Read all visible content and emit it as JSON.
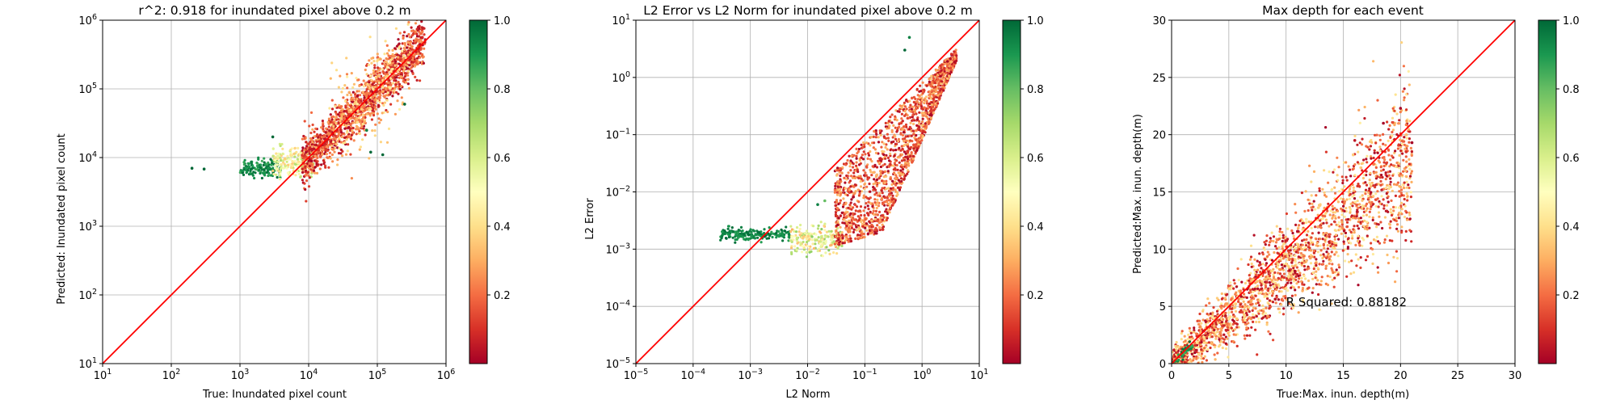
{
  "chart_data": [
    {
      "type": "scatter",
      "title": "r^2: 0.918 for inundated pixel above 0.2 m",
      "xlabel": "True: Inundated pixel count",
      "ylabel": "Predicted: Inundated pixel count",
      "xscale": "log",
      "yscale": "log",
      "xlim": [
        10,
        1000000
      ],
      "ylim": [
        10,
        1000000
      ],
      "x_ticks": [
        {
          "value": 10,
          "label": "10",
          "exp": "1"
        },
        {
          "value": 100,
          "label": "10",
          "exp": "2"
        },
        {
          "value": 1000,
          "label": "10",
          "exp": "3"
        },
        {
          "value": 10000,
          "label": "10",
          "exp": "4"
        },
        {
          "value": 100000,
          "label": "10",
          "exp": "5"
        },
        {
          "value": 1000000,
          "label": "10",
          "exp": "6"
        }
      ],
      "y_ticks": [
        {
          "value": 10,
          "label": "10",
          "exp": "1"
        },
        {
          "value": 100,
          "label": "10",
          "exp": "2"
        },
        {
          "value": 1000,
          "label": "10",
          "exp": "3"
        },
        {
          "value": 10000,
          "label": "10",
          "exp": "4"
        },
        {
          "value": 100000,
          "label": "10",
          "exp": "5"
        },
        {
          "value": 1000000,
          "label": "10",
          "exp": "6"
        }
      ],
      "grid": true,
      "reference_line": {
        "from": [
          10,
          10
        ],
        "to": [
          1000000,
          1000000
        ],
        "color": "#ff0000"
      },
      "colormap": "RdYlGn",
      "colorbar": {
        "range": [
          0,
          1
        ],
        "ticks": [
          "0.2",
          "0.4",
          "0.6",
          "0.8",
          "1.0"
        ]
      },
      "clusters": [
        {
          "x_range": [
            1000,
            4000
          ],
          "y_center": 7000,
          "spread": 0.06,
          "color_range": [
            0.85,
            1.0
          ],
          "count": 150
        },
        {
          "x_range": [
            3000,
            12000
          ],
          "y_center": 8500,
          "spread": 0.1,
          "color_range": [
            0.35,
            0.7
          ],
          "count": 200
        },
        {
          "x_range": [
            8000,
            500000
          ],
          "y_follow": 1.0,
          "spread": 0.18,
          "color_range": [
            0.0,
            0.3
          ],
          "count": 1400
        },
        {
          "x_range": [
            20000,
            300000
          ],
          "y_follow": 1.0,
          "spread": 0.35,
          "color_range": [
            0.2,
            0.45
          ],
          "count": 250
        }
      ],
      "outliers": [
        {
          "x": 200,
          "y": 7000,
          "c": 1.0
        },
        {
          "x": 300,
          "y": 6800,
          "c": 1.0
        },
        {
          "x": 3000,
          "y": 20000,
          "c": 1.0
        },
        {
          "x": 80000,
          "y": 12000,
          "c": 1.0
        },
        {
          "x": 120000,
          "y": 11000,
          "c": 1.0
        },
        {
          "x": 70000,
          "y": 25000,
          "c": 0.95
        },
        {
          "x": 250000,
          "y": 60000,
          "c": 1.0
        }
      ]
    },
    {
      "type": "scatter",
      "title": "L2 Error vs L2 Norm for inundated pixel above 0.2 m",
      "xlabel": "L2 Norm",
      "ylabel": "L2 Error",
      "xscale": "log",
      "yscale": "log",
      "xlim": [
        1e-05,
        10
      ],
      "ylim": [
        1e-05,
        10
      ],
      "x_ticks": [
        {
          "value": 1e-05,
          "label": "10",
          "exp": "−5"
        },
        {
          "value": 0.0001,
          "label": "10",
          "exp": "−4"
        },
        {
          "value": 0.001,
          "label": "10",
          "exp": "−3"
        },
        {
          "value": 0.01,
          "label": "10",
          "exp": "−2"
        },
        {
          "value": 0.1,
          "label": "10",
          "exp": "−1"
        },
        {
          "value": 1,
          "label": "10",
          "exp": "0"
        },
        {
          "value": 10,
          "label": "10",
          "exp": "1"
        }
      ],
      "y_ticks": [
        {
          "value": 1e-05,
          "label": "10",
          "exp": "−5"
        },
        {
          "value": 0.0001,
          "label": "10",
          "exp": "−4"
        },
        {
          "value": 0.001,
          "label": "10",
          "exp": "−3"
        },
        {
          "value": 0.01,
          "label": "10",
          "exp": "−2"
        },
        {
          "value": 0.1,
          "label": "10",
          "exp": "−1"
        },
        {
          "value": 1,
          "label": "10",
          "exp": "0"
        },
        {
          "value": 10,
          "label": "10",
          "exp": "1"
        }
      ],
      "grid": true,
      "reference_line": {
        "from": [
          1e-05,
          1e-05
        ],
        "to": [
          10,
          10
        ],
        "color": "#ff0000"
      },
      "colormap": "RdYlGn",
      "colorbar": {
        "range": [
          0,
          1
        ],
        "ticks": [
          "0.2",
          "0.4",
          "0.6",
          "0.8",
          "1.0"
        ]
      },
      "clusters": [
        {
          "x_range": [
            0.0003,
            0.005
          ],
          "y_center": 0.0018,
          "spread": 0.05,
          "color_range": [
            0.88,
            1.0
          ],
          "count": 180
        },
        {
          "x_range": [
            0.005,
            0.04
          ],
          "y_center": 0.0015,
          "spread": 0.12,
          "color_range": [
            0.3,
            0.75
          ],
          "count": 200
        },
        {
          "x_range": [
            0.03,
            4
          ],
          "y_lower_curve": true,
          "spread": 0.0,
          "color_range": [
            0.0,
            0.35
          ],
          "count": 1600
        }
      ],
      "outliers": [
        {
          "x": 0.5,
          "y": 3,
          "c": 1.0
        },
        {
          "x": 0.6,
          "y": 5,
          "c": 0.95
        },
        {
          "x": 0.02,
          "y": 0.007,
          "c": 0.8
        },
        {
          "x": 0.015,
          "y": 0.006,
          "c": 0.95
        }
      ]
    },
    {
      "type": "scatter",
      "title": "Max depth for each event",
      "xlabel": "True:Max. inun. depth(m)",
      "ylabel": "Predicted:Max. inun. depth(m)",
      "xscale": "linear",
      "yscale": "linear",
      "xlim": [
        0,
        30
      ],
      "ylim": [
        0,
        30
      ],
      "x_ticks": [
        {
          "value": 0,
          "label": "0"
        },
        {
          "value": 5,
          "label": "5"
        },
        {
          "value": 10,
          "label": "10"
        },
        {
          "value": 15,
          "label": "15"
        },
        {
          "value": 20,
          "label": "20"
        },
        {
          "value": 25,
          "label": "25"
        },
        {
          "value": 30,
          "label": "30"
        }
      ],
      "y_ticks": [
        {
          "value": 0,
          "label": "0"
        },
        {
          "value": 5,
          "label": "5"
        },
        {
          "value": 10,
          "label": "10"
        },
        {
          "value": 15,
          "label": "15"
        },
        {
          "value": 20,
          "label": "20"
        },
        {
          "value": 25,
          "label": "25"
        },
        {
          "value": 30,
          "label": "30"
        }
      ],
      "grid": true,
      "reference_line": {
        "from": [
          0,
          0
        ],
        "to": [
          30,
          30
        ],
        "color": "#ff0000"
      },
      "annotation": {
        "text": "R Squared: 0.88182",
        "x": 10,
        "y": 5
      },
      "colormap": "RdYlGn",
      "colorbar": {
        "range": [
          0,
          1
        ],
        "ticks": [
          "0.2",
          "0.4",
          "0.6",
          "0.8",
          "1.0"
        ]
      },
      "clusters": [
        {
          "x_range": [
            0,
            21
          ],
          "y_slope": 0.85,
          "spread": 1.6,
          "color_range": [
            0.0,
            0.45
          ],
          "count": 2200
        },
        {
          "x_range": [
            0,
            2
          ],
          "y_slope": 0.9,
          "spread": 0.4,
          "color_range": [
            0.85,
            1.0
          ],
          "count": 40
        }
      ],
      "outliers": [
        {
          "x": 20,
          "y": 22.3,
          "c": 0.0
        },
        {
          "x": 18.5,
          "y": 21,
          "c": 0.0
        },
        {
          "x": 16,
          "y": 19.5,
          "c": 0.05
        },
        {
          "x": 21,
          "y": 19.3,
          "c": 0.0
        },
        {
          "x": 20.5,
          "y": 18.5,
          "c": 0.1
        }
      ]
    }
  ]
}
